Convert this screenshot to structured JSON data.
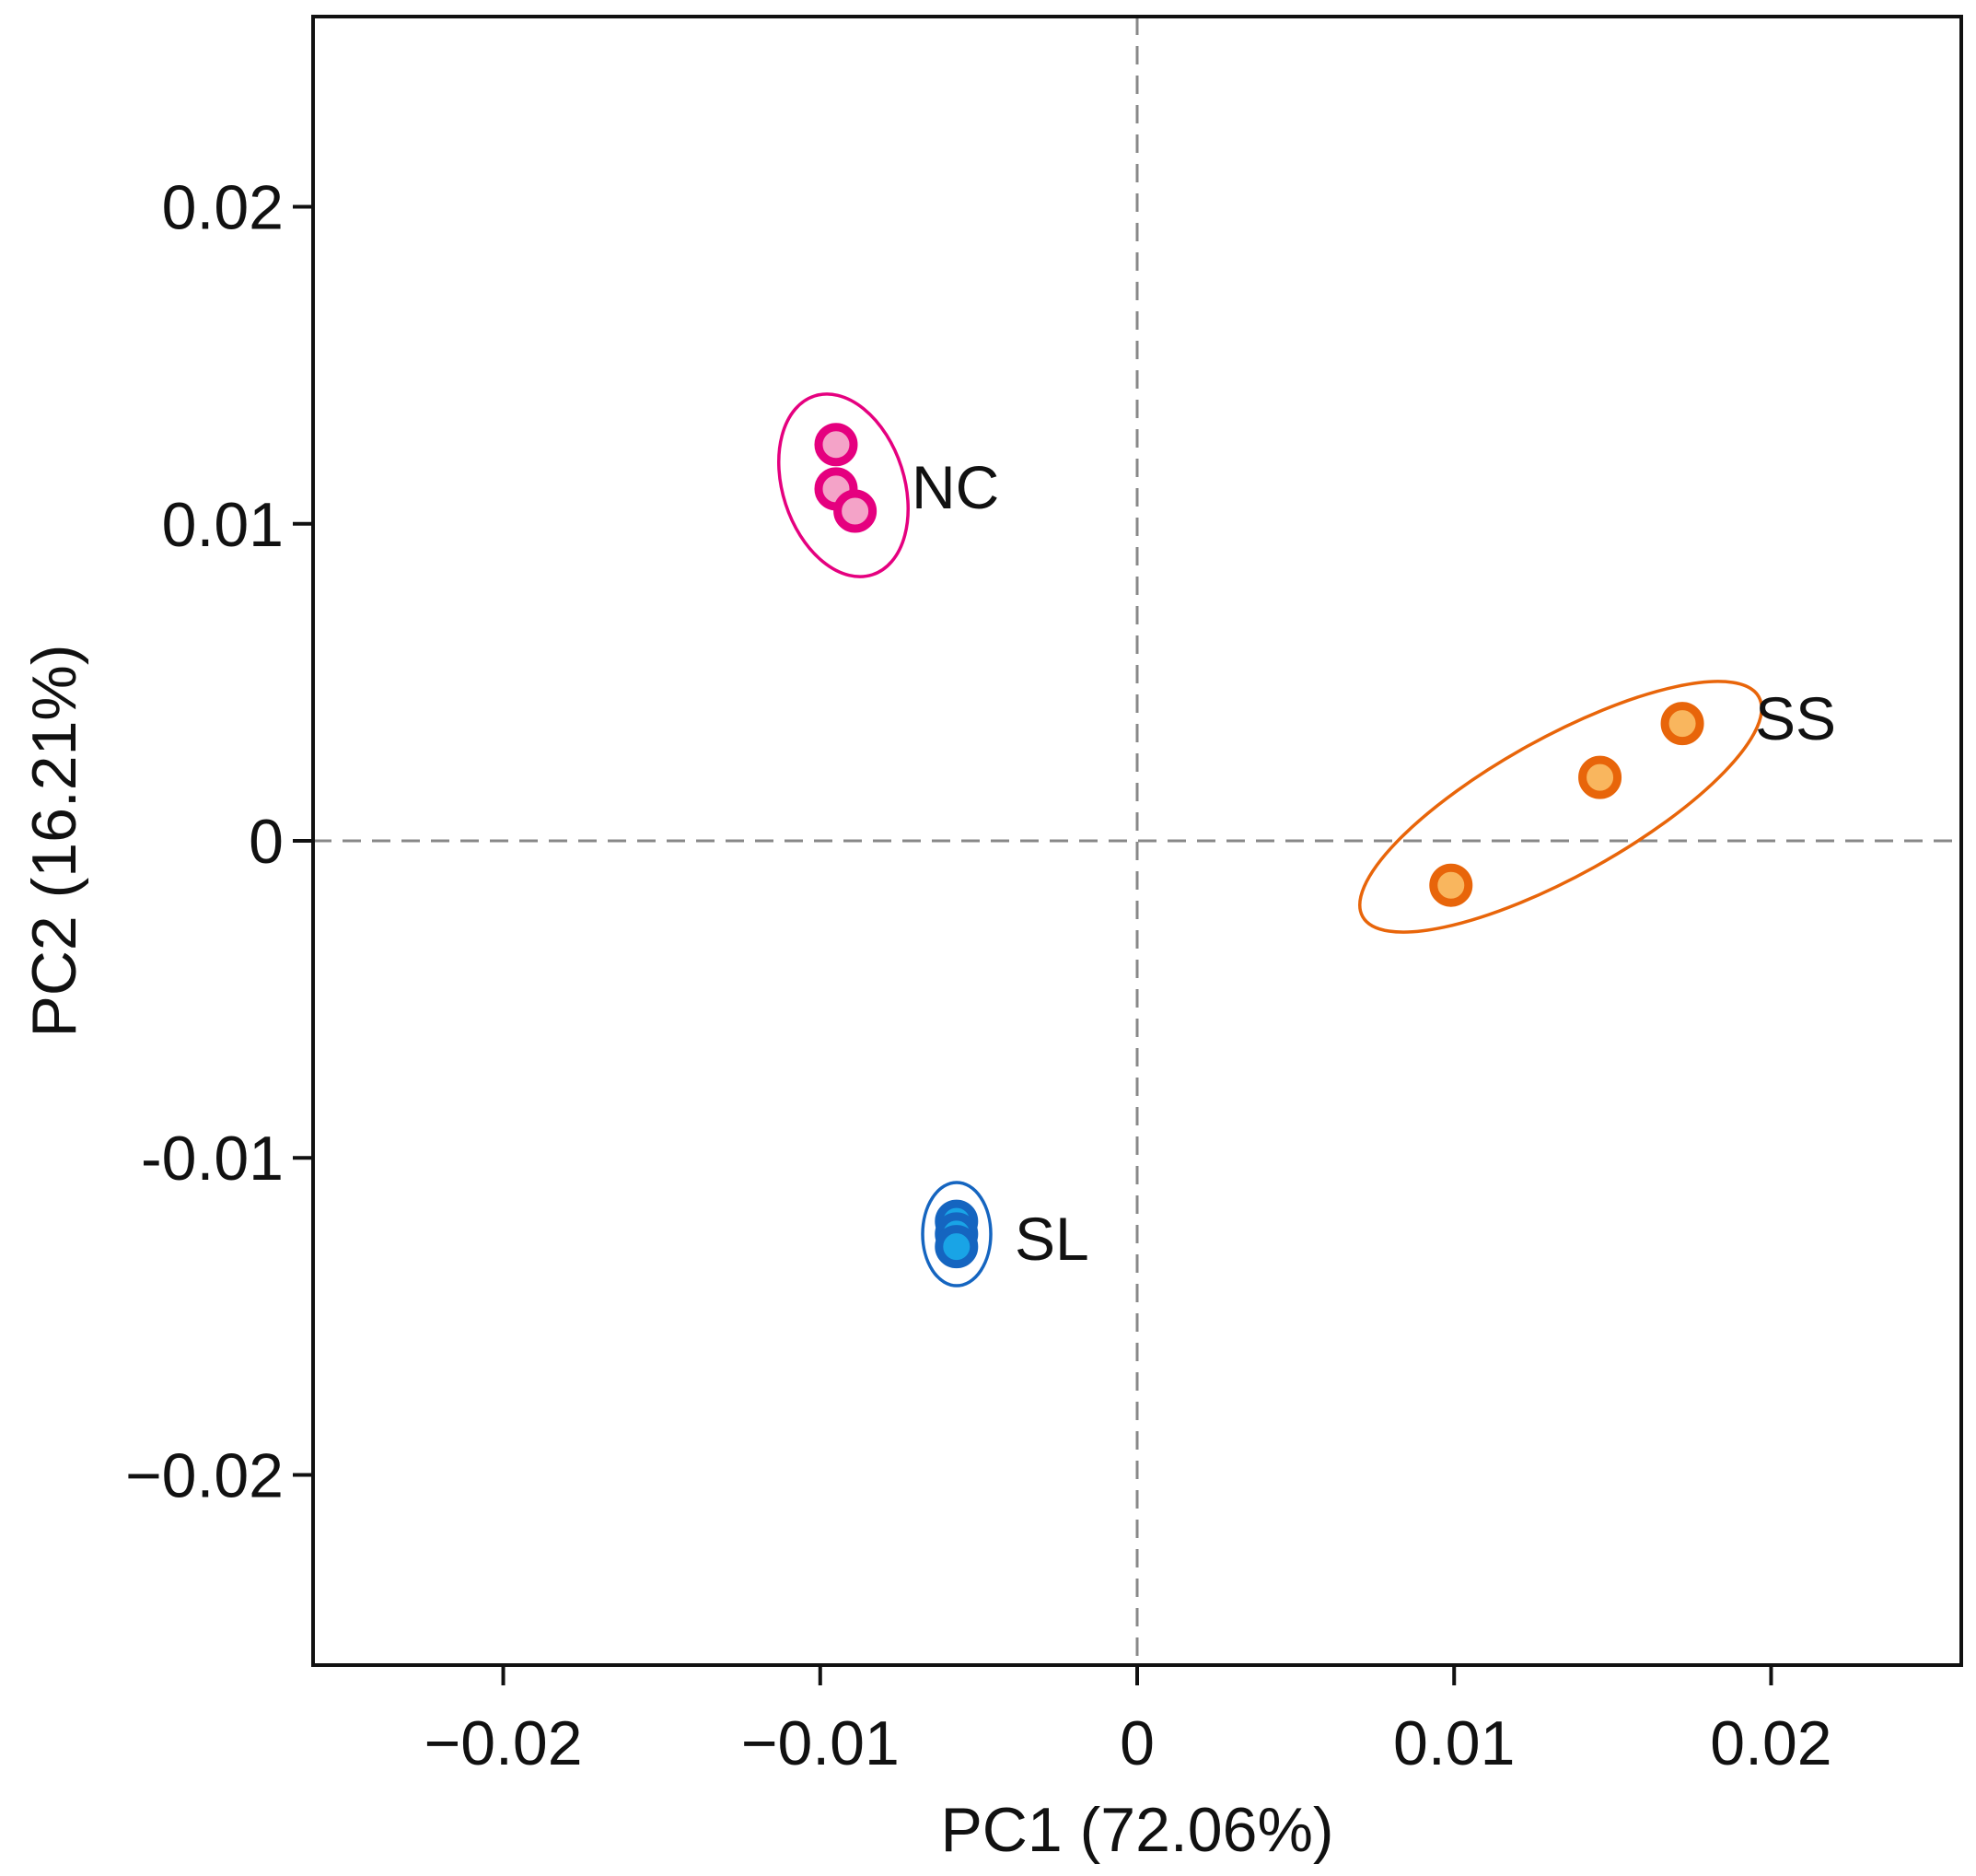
{
  "chart_data": {
    "type": "scatter",
    "title": "",
    "xlabel": "PC1 (72.06%)",
    "ylabel": "PC2 (16.21%)",
    "xlim": [
      -0.026,
      0.026
    ],
    "ylim": [
      -0.026,
      0.026
    ],
    "xticks": [
      -0.02,
      -0.01,
      0,
      0.01,
      0.02
    ],
    "yticks": [
      -0.02,
      -0.01,
      0,
      0.01,
      0.02
    ],
    "xtick_labels": [
      "−0.02",
      "−0.01",
      "0",
      "0.01",
      "0.02"
    ],
    "ytick_labels": [
      "−0.02",
      "-0.01",
      "0",
      "0.01",
      "0.02"
    ],
    "reference_lines": {
      "x": 0,
      "y": 0,
      "style": "dashed"
    },
    "series": [
      {
        "name": "NC",
        "color": "#e5007f",
        "fill": "#f4a3c8",
        "points": [
          {
            "x": -0.0095,
            "y": 0.0125
          },
          {
            "x": -0.0095,
            "y": 0.0111
          },
          {
            "x": -0.0089,
            "y": 0.0104
          }
        ]
      },
      {
        "name": "SS",
        "color": "#e8650a",
        "fill": "#f9b65e",
        "points": [
          {
            "x": 0.0172,
            "y": 0.0037
          },
          {
            "x": 0.0146,
            "y": 0.002
          },
          {
            "x": 0.0099,
            "y": -0.0014
          }
        ]
      },
      {
        "name": "SL",
        "color": "#1565c0",
        "fill": "#19a4e6",
        "points": [
          {
            "x": -0.0057,
            "y": -0.012
          },
          {
            "x": -0.0057,
            "y": -0.0124
          },
          {
            "x": -0.0057,
            "y": -0.0128
          }
        ]
      }
    ]
  }
}
